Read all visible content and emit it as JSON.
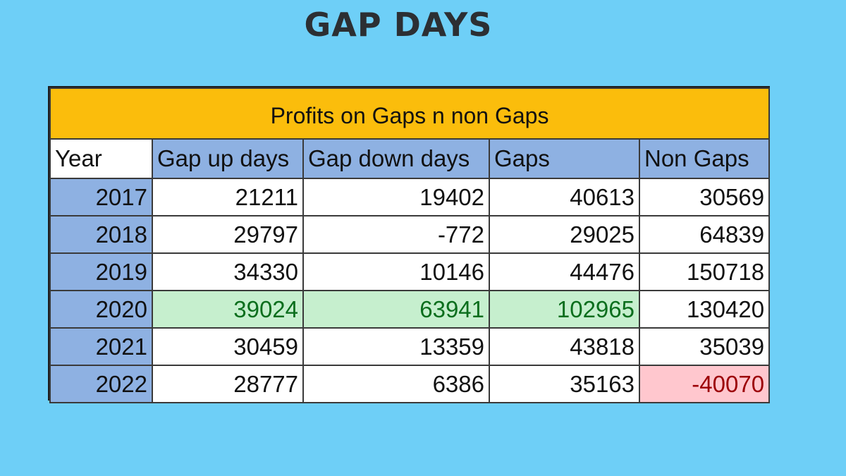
{
  "page": {
    "title": "GAP DAYS"
  },
  "chart_data": {
    "type": "table",
    "title": "Profits on Gaps n non Gaps",
    "columns": [
      "Year",
      "Gap up days",
      "Gap down days",
      "Gaps",
      "Non Gaps"
    ],
    "rows": [
      [
        "2017",
        "21211",
        "19402",
        "40613",
        "30569"
      ],
      [
        "2018",
        "29797",
        "-772",
        "29025",
        "64839"
      ],
      [
        "2019",
        "34330",
        "10146",
        "44476",
        "150718"
      ],
      [
        "2020",
        "39024",
        "63941",
        "102965",
        "130420"
      ],
      [
        "2021",
        "30459",
        "13359",
        "43818",
        "35039"
      ],
      [
        "2022",
        "28777",
        "6386",
        "35163",
        "-40070"
      ]
    ],
    "highlights": {
      "green": [
        [
          3,
          1
        ],
        [
          3,
          2
        ],
        [
          3,
          3
        ]
      ],
      "red": [
        [
          5,
          4
        ]
      ]
    },
    "colors": {
      "background": "#6ecff7",
      "caption": "#fbbd0c",
      "header": "#8eb1e2",
      "green_fill": "#c6efce",
      "green_text": "#0b6e1d",
      "red_fill": "#ffc7ce",
      "red_text": "#9c0006"
    }
  }
}
